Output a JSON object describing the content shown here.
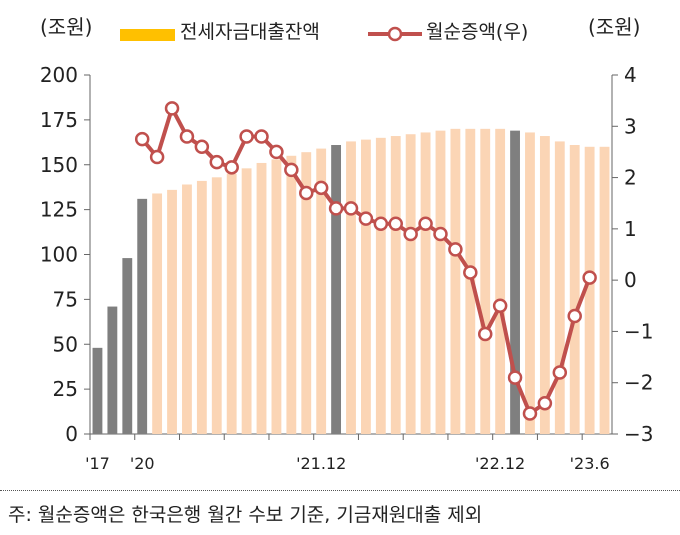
{
  "chart_data": {
    "type": "bar+line",
    "left_unit": "(조원)",
    "right_unit": "(조원)",
    "legend": [
      {
        "label": "전세자금대출잔액",
        "kind": "bar",
        "color": "#ffc000"
      },
      {
        "label": "월순증액(우)",
        "kind": "line",
        "color": "#c0504d"
      }
    ],
    "left_axis": {
      "min": 0,
      "max": 200,
      "ticks": [
        "0",
        "25",
        "50",
        "75",
        "100",
        "125",
        "150",
        "175",
        "200"
      ]
    },
    "right_axis": {
      "min": -3,
      "max": 4,
      "ticks": [
        "−3",
        "−2",
        "−1",
        "0",
        "1",
        "2",
        "3",
        "4"
      ]
    },
    "x_tick_labels": [
      {
        "label": "'17",
        "index": 0
      },
      {
        "label": "'20",
        "index": 3
      },
      {
        "label": "'21.12",
        "index": 15
      },
      {
        "label": "'22.12",
        "index": 27
      },
      {
        "label": "'23.6",
        "index": 33
      }
    ],
    "bars": {
      "values": [
        48,
        71,
        98,
        131,
        134,
        136,
        139,
        141,
        143,
        145,
        148,
        151,
        153,
        155,
        157,
        159,
        161,
        163,
        164,
        165,
        166,
        167,
        168,
        169,
        170,
        170,
        170,
        170,
        169,
        168,
        166,
        163,
        161,
        160,
        160
      ],
      "highlight_indices": [
        0,
        1,
        2,
        3,
        16,
        28
      ],
      "highlight_color": "#7f7f7f",
      "normal_color": "#fbd5b5"
    },
    "line": {
      "start_index": 3,
      "values": [
        2.75,
        2.4,
        3.35,
        2.8,
        2.6,
        2.3,
        2.2,
        2.8,
        2.8,
        2.5,
        2.15,
        1.7,
        1.8,
        1.4,
        1.4,
        1.2,
        1.1,
        1.1,
        0.9,
        1.1,
        0.9,
        0.6,
        0.15,
        -1.05,
        -0.5,
        -1.9,
        -2.6,
        -2.4,
        -1.8,
        -0.7,
        0.05
      ],
      "color": "#c0504d"
    }
  },
  "footnote": "주: 월순증액은 한국은행 월간 수보 기준, 기금재원대출 제외"
}
